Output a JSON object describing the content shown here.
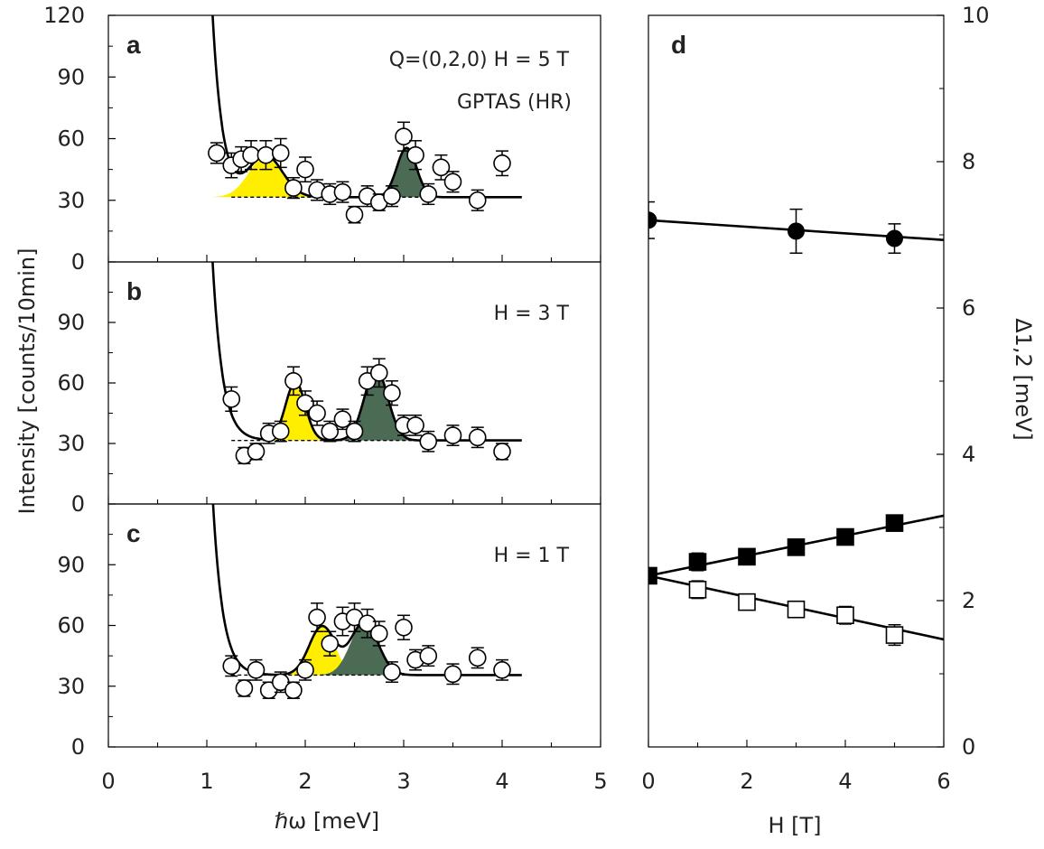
{
  "chart_data": [
    {
      "type": "scatter",
      "panel": "a",
      "annotations": [
        "Q=(0,2,0)   H = 5 T",
        "GPTAS (HR)"
      ],
      "xlabel": "ℏω [meV]",
      "ylabel": "Intensity [counts/10min]",
      "xlim": [
        0,
        5
      ],
      "ylim": [
        0,
        120
      ],
      "yticks": [
        "0",
        "30",
        "60",
        "90",
        "120"
      ],
      "background": 31.5,
      "fit": {
        "tail_amp": 160,
        "tail_rate": 10,
        "tail_x0": 1.0,
        "peaks": [
          {
            "center": 1.6,
            "height": 20,
            "width": 0.17,
            "color": "#ffee00"
          },
          {
            "center": 3.03,
            "height": 24,
            "width": 0.1,
            "color": "#4b6b55"
          }
        ]
      },
      "points": [
        {
          "x": 1.1,
          "y": 53,
          "err": 5
        },
        {
          "x": 1.25,
          "y": 47,
          "err": 6
        },
        {
          "x": 1.35,
          "y": 50,
          "err": 6
        },
        {
          "x": 1.45,
          "y": 52,
          "err": 7
        },
        {
          "x": 1.6,
          "y": 52,
          "err": 7
        },
        {
          "x": 1.75,
          "y": 53,
          "err": 7
        },
        {
          "x": 1.88,
          "y": 36,
          "err": 5
        },
        {
          "x": 2.0,
          "y": 45,
          "err": 6
        },
        {
          "x": 2.12,
          "y": 35,
          "err": 5
        },
        {
          "x": 2.25,
          "y": 33,
          "err": 5
        },
        {
          "x": 2.38,
          "y": 34,
          "err": 5
        },
        {
          "x": 2.5,
          "y": 23,
          "err": 4
        },
        {
          "x": 2.63,
          "y": 32,
          "err": 5
        },
        {
          "x": 2.75,
          "y": 29,
          "err": 4
        },
        {
          "x": 2.88,
          "y": 32,
          "err": 5
        },
        {
          "x": 3.0,
          "y": 61,
          "err": 7
        },
        {
          "x": 3.12,
          "y": 52,
          "err": 7
        },
        {
          "x": 3.25,
          "y": 33,
          "err": 5
        },
        {
          "x": 3.38,
          "y": 46,
          "err": 6
        },
        {
          "x": 3.5,
          "y": 39,
          "err": 5
        },
        {
          "x": 3.75,
          "y": 30,
          "err": 5
        },
        {
          "x": 4.0,
          "y": 48,
          "err": 6
        }
      ]
    },
    {
      "type": "scatter",
      "panel": "b",
      "annotations": [
        "H = 3 T"
      ],
      "xlim": [
        0,
        5
      ],
      "ylim": [
        0,
        120
      ],
      "yticks": [
        "0",
        "30",
        "60",
        "90"
      ],
      "background": 31.5,
      "fit": {
        "tail_amp": 160,
        "tail_rate": 10,
        "tail_x0": 1.0,
        "peaks": [
          {
            "center": 1.9,
            "height": 29,
            "width": 0.1,
            "color": "#ffee00"
          },
          {
            "center": 2.72,
            "height": 35,
            "width": 0.12,
            "color": "#4b6b55"
          }
        ]
      },
      "points": [
        {
          "x": 1.25,
          "y": 52,
          "err": 6
        },
        {
          "x": 1.38,
          "y": 24,
          "err": 4
        },
        {
          "x": 1.5,
          "y": 26,
          "err": 4
        },
        {
          "x": 1.63,
          "y": 35,
          "err": 5
        },
        {
          "x": 1.75,
          "y": 36,
          "err": 5
        },
        {
          "x": 1.88,
          "y": 61,
          "err": 7
        },
        {
          "x": 2.0,
          "y": 50,
          "err": 6
        },
        {
          "x": 2.12,
          "y": 45,
          "err": 6
        },
        {
          "x": 2.25,
          "y": 36,
          "err": 5
        },
        {
          "x": 2.38,
          "y": 42,
          "err": 5
        },
        {
          "x": 2.5,
          "y": 36,
          "err": 5
        },
        {
          "x": 2.63,
          "y": 61,
          "err": 7
        },
        {
          "x": 2.75,
          "y": 65,
          "err": 7
        },
        {
          "x": 2.88,
          "y": 55,
          "err": 6
        },
        {
          "x": 3.0,
          "y": 39,
          "err": 5
        },
        {
          "x": 3.12,
          "y": 39,
          "err": 5
        },
        {
          "x": 3.25,
          "y": 31,
          "err": 5
        },
        {
          "x": 3.5,
          "y": 34,
          "err": 5
        },
        {
          "x": 3.75,
          "y": 33,
          "err": 5
        },
        {
          "x": 4.0,
          "y": 26,
          "err": 4
        }
      ]
    },
    {
      "type": "scatter",
      "panel": "c",
      "annotations": [
        "H = 1 T"
      ],
      "xlim": [
        0,
        5
      ],
      "ylim": [
        0,
        120
      ],
      "yticks": [
        "0",
        "30",
        "60",
        "90"
      ],
      "xticks": [
        "0",
        "1",
        "2",
        "3",
        "4",
        "5"
      ],
      "background": 35.5,
      "fit": {
        "tail_amp": 160,
        "tail_rate": 10,
        "tail_x0": 1.0,
        "peaks": [
          {
            "center": 2.17,
            "height": 24,
            "width": 0.13,
            "color": "#ffee00"
          },
          {
            "center": 2.6,
            "height": 26,
            "width": 0.14,
            "color": "#4b6b55"
          }
        ]
      },
      "points": [
        {
          "x": 1.25,
          "y": 40,
          "err": 5
        },
        {
          "x": 1.38,
          "y": 29,
          "err": 4
        },
        {
          "x": 1.5,
          "y": 38,
          "err": 5
        },
        {
          "x": 1.63,
          "y": 28,
          "err": 4
        },
        {
          "x": 1.75,
          "y": 32,
          "err": 5
        },
        {
          "x": 1.88,
          "y": 28,
          "err": 4
        },
        {
          "x": 2.0,
          "y": 38,
          "err": 5
        },
        {
          "x": 2.12,
          "y": 64,
          "err": 7
        },
        {
          "x": 2.25,
          "y": 51,
          "err": 6
        },
        {
          "x": 2.38,
          "y": 62,
          "err": 7
        },
        {
          "x": 2.5,
          "y": 64,
          "err": 7
        },
        {
          "x": 2.63,
          "y": 61,
          "err": 7
        },
        {
          "x": 2.75,
          "y": 56,
          "err": 6
        },
        {
          "x": 2.88,
          "y": 37,
          "err": 5
        },
        {
          "x": 3.0,
          "y": 59,
          "err": 6
        },
        {
          "x": 3.12,
          "y": 43,
          "err": 5
        },
        {
          "x": 3.25,
          "y": 45,
          "err": 5
        },
        {
          "x": 3.5,
          "y": 36,
          "err": 5
        },
        {
          "x": 3.75,
          "y": 44,
          "err": 5
        },
        {
          "x": 4.0,
          "y": 38,
          "err": 5
        }
      ]
    },
    {
      "type": "scatter",
      "panel": "d",
      "xlabel": "H [T]",
      "ylabel": "Δ1,2 [meV]",
      "xlim": [
        0,
        6
      ],
      "ylim": [
        0,
        10
      ],
      "xticks": [
        "0",
        "2",
        "4",
        "6"
      ],
      "yticks": [
        "0",
        "2",
        "4",
        "6",
        "8",
        "10"
      ],
      "series": [
        {
          "marker": "filled-circle",
          "fit": [
            7.2,
            -0.045
          ],
          "points": [
            {
              "x": 0,
              "y": 7.2,
              "err": 0.25
            },
            {
              "x": 3,
              "y": 7.05,
              "err": 0.3
            },
            {
              "x": 5,
              "y": 6.95,
              "err": 0.2
            }
          ]
        },
        {
          "marker": "filled-square",
          "fit": [
            2.34,
            0.137
          ],
          "points": [
            {
              "x": 0,
              "y": 2.34,
              "err": 0.05
            },
            {
              "x": 1,
              "y": 2.53,
              "err": 0.12
            },
            {
              "x": 2,
              "y": 2.6,
              "err": 0.06
            },
            {
              "x": 3,
              "y": 2.73,
              "err": 0.06
            },
            {
              "x": 4,
              "y": 2.87,
              "err": 0.06
            },
            {
              "x": 5,
              "y": 3.06,
              "err": 0.06
            }
          ]
        },
        {
          "marker": "open-square",
          "fit": [
            2.34,
            -0.145
          ],
          "points": [
            {
              "x": 1,
              "y": 2.15,
              "err": 0.12
            },
            {
              "x": 2,
              "y": 1.98,
              "err": 0.06
            },
            {
              "x": 3,
              "y": 1.88,
              "err": 0.06
            },
            {
              "x": 4,
              "y": 1.8,
              "err": 0.12
            },
            {
              "x": 5,
              "y": 1.53,
              "err": 0.14
            }
          ]
        }
      ]
    }
  ]
}
